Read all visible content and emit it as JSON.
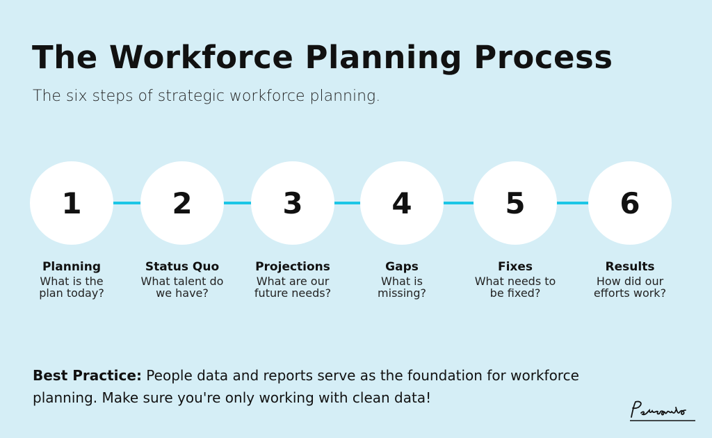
{
  "title": "The Workforce Planning Process",
  "subtitle": "The six steps of strategic workforce planning.",
  "accent_color": "#1cc6e6",
  "background_color": "#d5eef6",
  "steps": [
    {
      "number": "1",
      "name": "Planning",
      "question": "What is the plan today?"
    },
    {
      "number": "2",
      "name": "Status Quo",
      "question": "What talent do we have?"
    },
    {
      "number": "3",
      "name": "Projections",
      "question": "What are our future needs?"
    },
    {
      "number": "4",
      "name": "Gaps",
      "question": "What is missing?"
    },
    {
      "number": "5",
      "name": "Fixes",
      "question": "What needs to be fixed?"
    },
    {
      "number": "6",
      "name": "Results",
      "question": "How did our efforts work?"
    }
  ],
  "best_practice": {
    "label": "Best Practice:",
    "text": " People data and reports serve as the foundation for workforce planning. Make sure you're only working with clean data!"
  },
  "logo": "Personio"
}
